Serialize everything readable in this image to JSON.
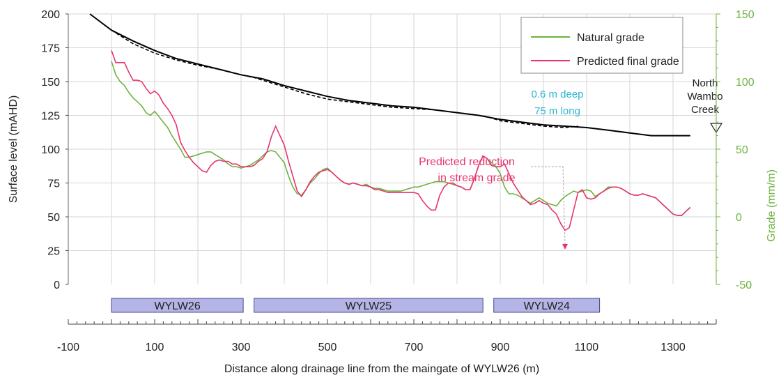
{
  "chart_data": {
    "type": "line",
    "xlabel": "Distance along drainage line from the maingate of WYLW26 (m)",
    "ylabel": "Surface level (mAHD)",
    "y2label": "Grade (mm/m)",
    "xlim": [
      -100,
      1400
    ],
    "ylim": [
      0,
      200
    ],
    "y2lim": [
      -50,
      150
    ],
    "x_ticks": [
      -100,
      100,
      300,
      500,
      700,
      900,
      1100,
      1300
    ],
    "y_ticks": [
      0,
      25,
      50,
      75,
      100,
      125,
      150,
      175,
      200
    ],
    "y2_ticks": [
      -50,
      0,
      50,
      100,
      150
    ],
    "grid": true,
    "legend_position": "top-right",
    "colors": {
      "surface": "#000000",
      "natural": "#6cb33f",
      "predicted": "#e8336e",
      "panel_fill": "#b4b4e6",
      "panel_stroke": "#4a4a8a",
      "annotation_blue": "#29b7d3",
      "annotation_red": "#e8336e",
      "axis2": "#6cb33f"
    },
    "surface_natural": {
      "x": [
        -50,
        0,
        50,
        100,
        150,
        200,
        250,
        300,
        350,
        400,
        450,
        500,
        550,
        600,
        650,
        700,
        750,
        800,
        850,
        900,
        950,
        1000,
        1050,
        1100,
        1150,
        1200,
        1250,
        1300,
        1340
      ],
      "y": [
        200,
        188,
        180,
        173,
        167,
        163,
        159,
        155,
        152,
        147,
        143,
        139,
        136,
        134,
        132,
        131,
        129,
        127,
        125,
        122,
        120,
        118,
        117,
        116,
        114,
        112,
        110,
        110,
        110
      ]
    },
    "surface_subsided": {
      "x": [
        0,
        50,
        100,
        150,
        200,
        250,
        300,
        330,
        350,
        400,
        450,
        500,
        550,
        600,
        650,
        700,
        750,
        800,
        850,
        870,
        900,
        950,
        1000,
        1050,
        1080
      ],
      "y": [
        188,
        178,
        171,
        166,
        162,
        159,
        155,
        153,
        151,
        146,
        141,
        137,
        135,
        133,
        131,
        130,
        129,
        127,
        125,
        124,
        121,
        119,
        117,
        116,
        117
      ]
    },
    "series": [
      {
        "name": "Natural grade",
        "color": "#6cb33f",
        "x": [
          0,
          10,
          20,
          30,
          40,
          50,
          60,
          70,
          80,
          90,
          100,
          110,
          120,
          130,
          140,
          150,
          160,
          170,
          180,
          190,
          200,
          210,
          220,
          230,
          240,
          250,
          260,
          270,
          280,
          290,
          300,
          310,
          320,
          330,
          340,
          350,
          360,
          370,
          380,
          390,
          400,
          410,
          420,
          430,
          440,
          450,
          460,
          470,
          480,
          490,
          500,
          510,
          520,
          530,
          540,
          550,
          560,
          570,
          580,
          590,
          600,
          610,
          620,
          630,
          640,
          650,
          660,
          670,
          680,
          690,
          700,
          710,
          720,
          730,
          740,
          750,
          760,
          770,
          780,
          790,
          800,
          810,
          820,
          830,
          840,
          850,
          860,
          870,
          880,
          890,
          900,
          910,
          920,
          930,
          940,
          950,
          960,
          970,
          980,
          990,
          1000,
          1010,
          1020,
          1030,
          1040,
          1050,
          1060,
          1070,
          1080,
          1090,
          1100,
          1110,
          1120,
          1130,
          1140,
          1150,
          1160,
          1170,
          1180,
          1190,
          1200,
          1210,
          1220,
          1230,
          1240,
          1250,
          1260,
          1270,
          1280,
          1290,
          1300,
          1310,
          1320,
          1330,
          1340
        ],
        "y": [
          115,
          105,
          100,
          97,
          92,
          88,
          85,
          82,
          77,
          75,
          78,
          74,
          70,
          66,
          60,
          55,
          50,
          44,
          44,
          45,
          46,
          47,
          48,
          48,
          46,
          44,
          42,
          39,
          37,
          37,
          36,
          37,
          38,
          40,
          42,
          45,
          48,
          49,
          48,
          44,
          40,
          30,
          22,
          17,
          16,
          20,
          25,
          28,
          32,
          35,
          36,
          33,
          30,
          27,
          25,
          24,
          25,
          24,
          23,
          24,
          22,
          21,
          21,
          20,
          19,
          19,
          19,
          19,
          20,
          21,
          22,
          22,
          23,
          24,
          25,
          26,
          26,
          26,
          25,
          24,
          23,
          22,
          20,
          20,
          28,
          38,
          45,
          43,
          40,
          37,
          32,
          22,
          17,
          17,
          16,
          14,
          12,
          10,
          12,
          14,
          12,
          10,
          9,
          8,
          12,
          15,
          17,
          19,
          18,
          19,
          20,
          19,
          15,
          17,
          19,
          22,
          22,
          22,
          21,
          19,
          17,
          16,
          16,
          17,
          16,
          15,
          14,
          11,
          8,
          5,
          2,
          1,
          1,
          4,
          7
        ]
      },
      {
        "name": "Predicted final grade",
        "color": "#e8336e",
        "x": [
          0,
          10,
          20,
          30,
          40,
          50,
          60,
          70,
          80,
          90,
          100,
          110,
          120,
          130,
          140,
          150,
          160,
          170,
          180,
          190,
          200,
          210,
          220,
          230,
          240,
          250,
          260,
          270,
          280,
          290,
          300,
          310,
          320,
          330,
          340,
          350,
          360,
          370,
          380,
          390,
          400,
          410,
          420,
          430,
          440,
          450,
          460,
          470,
          480,
          490,
          500,
          510,
          520,
          530,
          540,
          550,
          560,
          570,
          580,
          590,
          600,
          610,
          620,
          630,
          640,
          650,
          660,
          670,
          680,
          690,
          700,
          710,
          720,
          730,
          740,
          750,
          760,
          770,
          780,
          790,
          800,
          810,
          820,
          830,
          840,
          850,
          860,
          870,
          880,
          890,
          900,
          910,
          920,
          930,
          940,
          950,
          960,
          970,
          980,
          990,
          1000,
          1010,
          1020,
          1030,
          1040,
          1050,
          1060,
          1070,
          1080,
          1090,
          1100,
          1110,
          1120,
          1130,
          1140,
          1150,
          1160,
          1170,
          1180,
          1190,
          1200,
          1210,
          1220,
          1230,
          1240,
          1250,
          1260,
          1270,
          1280,
          1290,
          1300,
          1310,
          1320,
          1330,
          1340
        ],
        "y": [
          123,
          114,
          114,
          114,
          107,
          101,
          101,
          100,
          95,
          91,
          93,
          90,
          84,
          80,
          75,
          68,
          55,
          49,
          44,
          40,
          37,
          34,
          33,
          38,
          41,
          42,
          41,
          41,
          39,
          39,
          37,
          37,
          37,
          38,
          41,
          43,
          48,
          59,
          67,
          60,
          53,
          41,
          30,
          19,
          15,
          20,
          26,
          30,
          33,
          34,
          35,
          33,
          30,
          27,
          25,
          24,
          25,
          24,
          23,
          23,
          22,
          20,
          20,
          19,
          18,
          18,
          18,
          18,
          18,
          18,
          18,
          17,
          12,
          8,
          5,
          5,
          16,
          22,
          25,
          25,
          23,
          22,
          20,
          20,
          28,
          38,
          45,
          43,
          38,
          37,
          37,
          39,
          32,
          25,
          20,
          15,
          12,
          9,
          10,
          12,
          10,
          9,
          5,
          2,
          -5,
          -10,
          -8,
          5,
          18,
          20,
          14,
          13,
          14,
          17,
          19,
          21,
          22,
          22,
          21,
          19,
          17,
          16,
          16,
          17,
          16,
          15,
          14,
          11,
          8,
          5,
          2,
          1,
          1,
          4,
          7
        ]
      }
    ],
    "panels": [
      {
        "label": "WYLW26",
        "from": 0,
        "to": 305
      },
      {
        "label": "WYLW25",
        "from": 330,
        "to": 860
      },
      {
        "label": "WYLW24",
        "from": 885,
        "to": 1130
      }
    ],
    "endpoint_label": [
      "North",
      "Wambo",
      "Creek"
    ],
    "annotations": [
      {
        "lines": [
          "0.6 m deep",
          "75 m long"
        ],
        "color": "#29b7d3"
      },
      {
        "lines": [
          "Predicted reduction",
          "in stream grade"
        ],
        "color": "#e8336e"
      }
    ]
  }
}
